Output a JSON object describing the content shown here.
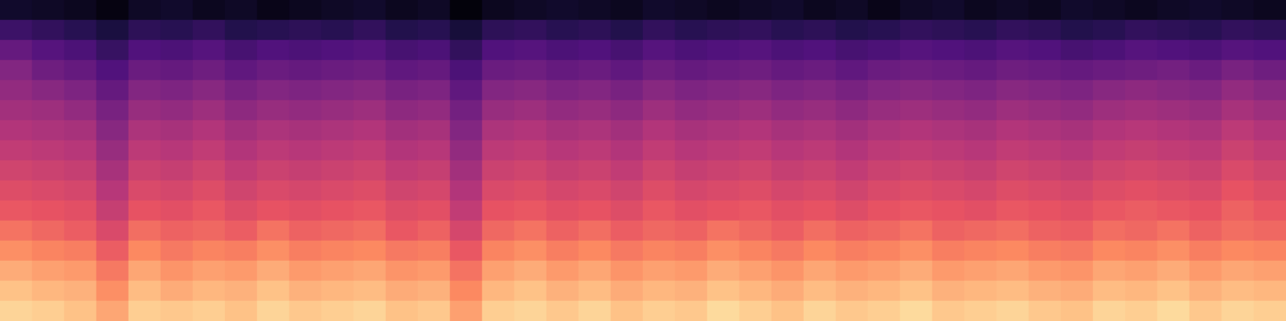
{
  "chart_data": {
    "type": "heatmap",
    "cells": [
      [
        -74,
        -75,
        -76,
        -78,
        -75,
        -74,
        -76,
        -75,
        -77,
        -76,
        -75,
        -74,
        -76,
        -75,
        -79,
        -76,
        -75,
        -74,
        -75,
        -76,
        -74,
        -75,
        -76,
        -75,
        -74,
        -76,
        -75,
        -77,
        -75,
        -74,
        -76,
        -75,
        -76,
        -74,
        -75,
        -76,
        -75,
        -74,
        -75,
        -76
      ],
      [
        -64,
        -66,
        -68,
        -71,
        -67,
        -68,
        -66,
        -69,
        -68,
        -67,
        -68,
        -66,
        -69,
        -68,
        -72,
        -67,
        -66,
        -68,
        -67,
        -69,
        -66,
        -68,
        -67,
        -66,
        -68,
        -67,
        -69,
        -68,
        -66,
        -67,
        -68,
        -66,
        -67,
        -69,
        -68,
        -66,
        -67,
        -68,
        -66,
        -67
      ],
      [
        -56,
        -59,
        -61,
        -65,
        -60,
        -61,
        -59,
        -62,
        -60,
        -61,
        -60,
        -59,
        -62,
        -61,
        -66,
        -60,
        -59,
        -61,
        -60,
        -62,
        -59,
        -61,
        -60,
        -59,
        -61,
        -60,
        -62,
        -61,
        -59,
        -60,
        -61,
        -59,
        -60,
        -62,
        -61,
        -59,
        -60,
        -61,
        -59,
        -60
      ],
      [
        -50,
        -54,
        -56,
        -60,
        -55,
        -56,
        -54,
        -57,
        -55,
        -56,
        -55,
        -54,
        -57,
        -56,
        -61,
        -55,
        -54,
        -56,
        -55,
        -57,
        -54,
        -56,
        -55,
        -54,
        -56,
        -55,
        -57,
        -55,
        -54,
        -55,
        -56,
        -54,
        -55,
        -56,
        -55,
        -54,
        -53,
        -55,
        -52,
        -54
      ],
      [
        -47,
        -49,
        -51,
        -56,
        -50,
        -51,
        -49,
        -52,
        -50,
        -51,
        -50,
        -49,
        -52,
        -51,
        -57,
        -50,
        -49,
        -51,
        -50,
        -52,
        -49,
        -51,
        -50,
        -49,
        -51,
        -50,
        -52,
        -50,
        -49,
        -50,
        -51,
        -49,
        -50,
        -51,
        -49,
        -48,
        -49,
        -50,
        -47,
        -49
      ],
      [
        -44,
        -45,
        -47,
        -52,
        -46,
        -47,
        -45,
        -48,
        -46,
        -47,
        -46,
        -45,
        -48,
        -47,
        -53,
        -46,
        -45,
        -47,
        -46,
        -48,
        -45,
        -47,
        -46,
        -45,
        -47,
        -46,
        -48,
        -46,
        -45,
        -46,
        -47,
        -45,
        -46,
        -47,
        -45,
        -44,
        -45,
        -46,
        -43,
        -45
      ],
      [
        -41,
        -42,
        -43,
        -49,
        -42,
        -43,
        -41,
        -44,
        -42,
        -43,
        -42,
        -41,
        -44,
        -43,
        -50,
        -42,
        -41,
        -43,
        -42,
        -44,
        -41,
        -43,
        -42,
        -41,
        -43,
        -42,
        -44,
        -42,
        -41,
        -42,
        -43,
        -41,
        -42,
        -43,
        -41,
        -40,
        -41,
        -42,
        -39,
        -41
      ],
      [
        -38,
        -39,
        -40,
        -46,
        -39,
        -40,
        -38,
        -41,
        -39,
        -40,
        -39,
        -38,
        -41,
        -40,
        -47,
        -39,
        -38,
        -40,
        -39,
        -41,
        -38,
        -40,
        -39,
        -38,
        -40,
        -39,
        -41,
        -39,
        -38,
        -39,
        -40,
        -38,
        -39,
        -40,
        -38,
        -37,
        -38,
        -39,
        -36,
        -38
      ],
      [
        -35,
        -36,
        -37,
        -43,
        -36,
        -37,
        -35,
        -38,
        -36,
        -37,
        -36,
        -35,
        -38,
        -37,
        -44,
        -36,
        -35,
        -37,
        -36,
        -38,
        -35,
        -37,
        -36,
        -35,
        -37,
        -36,
        -38,
        -36,
        -35,
        -36,
        -37,
        -35,
        -36,
        -37,
        -35,
        -34,
        -35,
        -36,
        -33,
        -35
      ],
      [
        -32,
        -33,
        -34,
        -40,
        -33,
        -34,
        -32,
        -35,
        -33,
        -34,
        -33,
        -32,
        -35,
        -34,
        -41,
        -33,
        -32,
        -34,
        -33,
        -35,
        -32,
        -34,
        -33,
        -32,
        -34,
        -33,
        -35,
        -33,
        -32,
        -33,
        -34,
        -32,
        -33,
        -34,
        -32,
        -31,
        -32,
        -33,
        -30,
        -32
      ],
      [
        -29,
        -30,
        -31,
        -37,
        -30,
        -31,
        -29,
        -32,
        -30,
        -31,
        -30,
        -29,
        -32,
        -31,
        -38,
        -30,
        -29,
        -31,
        -30,
        -32,
        -29,
        -31,
        -30,
        -29,
        -31,
        -30,
        -32,
        -30,
        -29,
        -30,
        -31,
        -29,
        -30,
        -31,
        -29,
        -28,
        -29,
        -30,
        -27,
        -29
      ],
      [
        -24,
        -26,
        -28,
        -33,
        -25,
        -27,
        -26,
        -28,
        -24,
        -27,
        -26,
        -25,
        -29,
        -27,
        -34,
        -26,
        -24,
        -27,
        -25,
        -28,
        -26,
        -27,
        -24,
        -26,
        -28,
        -25,
        -27,
        -26,
        -24,
        -27,
        -26,
        -25,
        -27,
        -28,
        -25,
        -26,
        -24,
        -27,
        -25,
        -26
      ],
      [
        -19,
        -21,
        -22,
        -28,
        -20,
        -23,
        -21,
        -22,
        -19,
        -22,
        -21,
        -20,
        -23,
        -22,
        -29,
        -21,
        -19,
        -22,
        -20,
        -23,
        -21,
        -22,
        -19,
        -21,
        -23,
        -20,
        -22,
        -21,
        -19,
        -22,
        -21,
        -20,
        -22,
        -23,
        -20,
        -21,
        -19,
        -22,
        -20,
        -21
      ],
      [
        -14,
        -16,
        -17,
        -23,
        -15,
        -18,
        -16,
        -17,
        -14,
        -17,
        -16,
        -15,
        -18,
        -17,
        -24,
        -16,
        -14,
        -17,
        -15,
        -18,
        -16,
        -17,
        -14,
        -16,
        -18,
        -15,
        -17,
        -16,
        -14,
        -17,
        -16,
        -15,
        -17,
        -18,
        -15,
        -16,
        -14,
        -17,
        -15,
        -16
      ],
      [
        -10,
        -12,
        -13,
        -19,
        -11,
        -14,
        -12,
        -13,
        -10,
        -13,
        -12,
        -11,
        -14,
        -13,
        -20,
        -12,
        -10,
        -13,
        -11,
        -14,
        -12,
        -13,
        -10,
        -12,
        -14,
        -11,
        -13,
        -12,
        -10,
        -13,
        -12,
        -11,
        -13,
        -14,
        -11,
        -12,
        -10,
        -13,
        -11,
        -12
      ],
      [
        -7,
        -8,
        -10,
        -15,
        -8,
        -9,
        -8,
        -10,
        -7,
        -9,
        -8,
        -7,
        -10,
        -9,
        -16,
        -8,
        -7,
        -9,
        -7,
        -10,
        -8,
        -9,
        -6,
        -8,
        -10,
        -7,
        -9,
        -8,
        -6,
        -9,
        -8,
        -7,
        -9,
        -10,
        -7,
        -8,
        -6,
        -9,
        -7,
        -8
      ]
    ],
    "color_range": [
      -80,
      0
    ],
    "tick_labels": false
  }
}
